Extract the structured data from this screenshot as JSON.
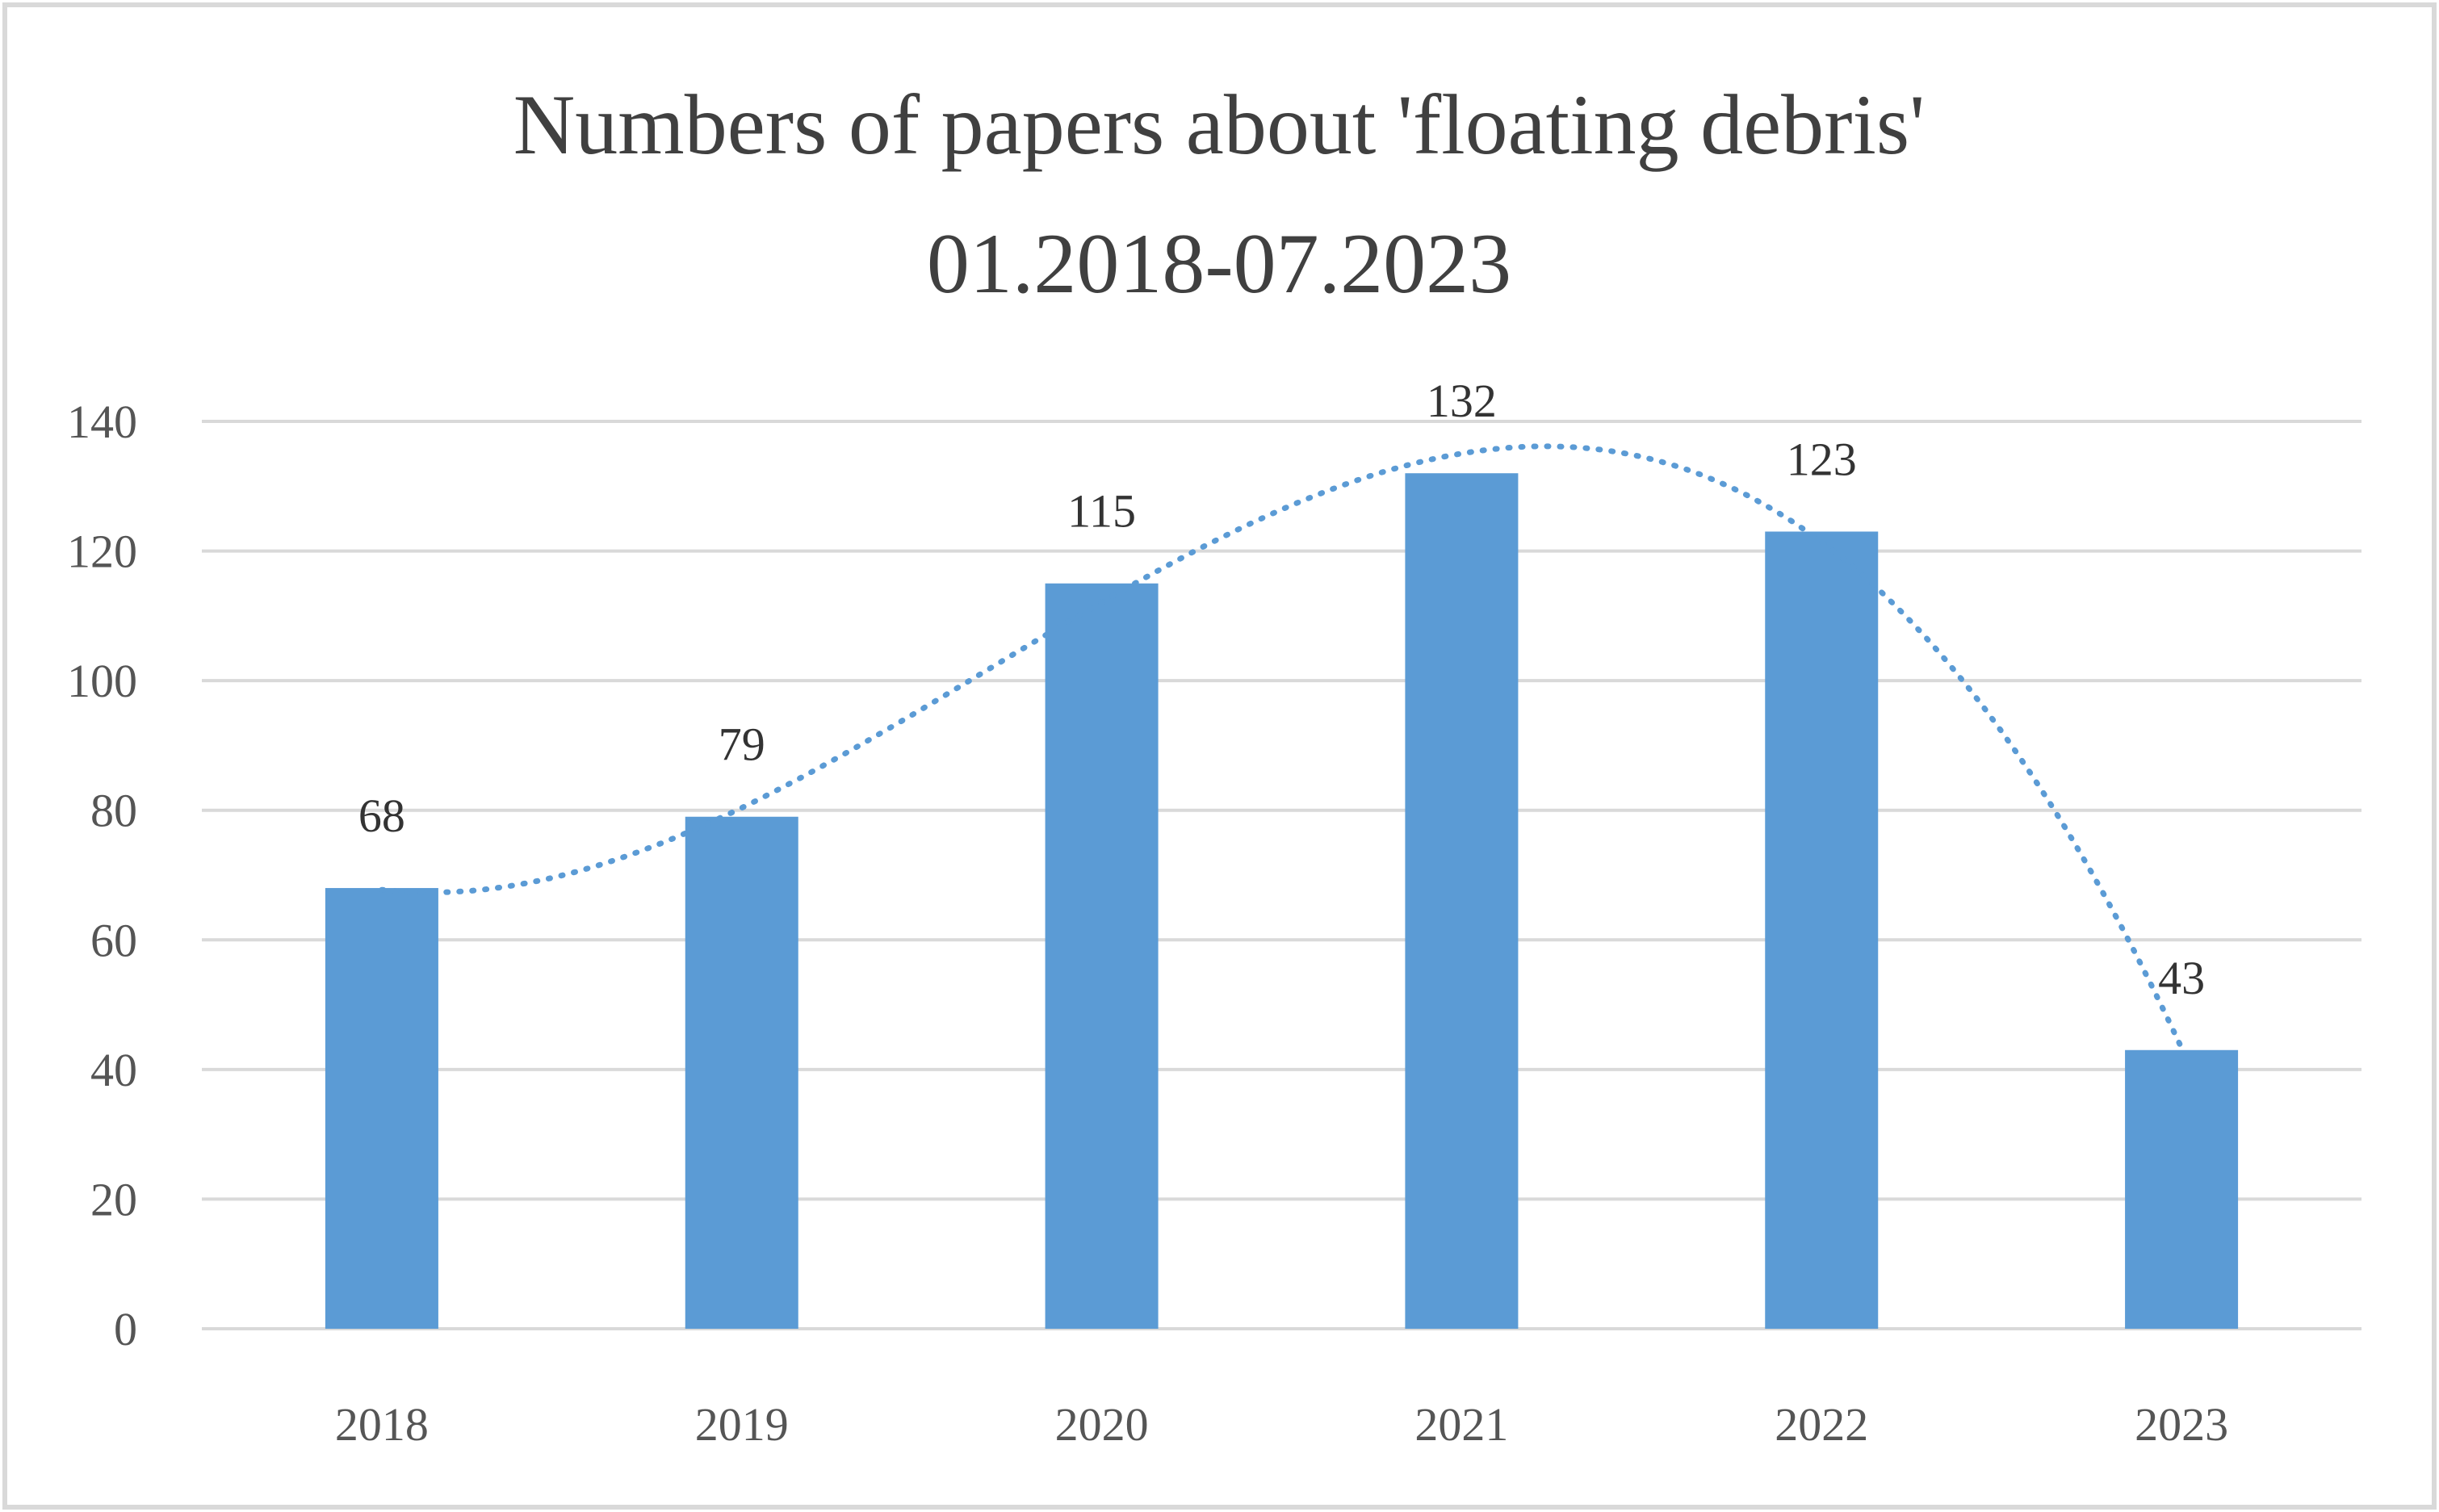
{
  "chart_data": {
    "type": "bar",
    "title": "Numbers of papers about 'floating debris'",
    "subtitle": "01.2018-07.2023",
    "categories": [
      "2018",
      "2019",
      "2020",
      "2021",
      "2022",
      "2023"
    ],
    "values": [
      68,
      79,
      115,
      132,
      123,
      43
    ],
    "data_labels": [
      "68",
      "79",
      "115",
      "132",
      "123",
      "43"
    ],
    "y_ticks": [
      0,
      20,
      40,
      60,
      80,
      100,
      120,
      140
    ],
    "ylim": [
      0,
      140
    ],
    "xlabel": "",
    "ylabel": "",
    "grid": true,
    "legend": "none",
    "trendline": {
      "type": "polynomial",
      "style": "dotted"
    },
    "colors": {
      "bar": "#5B9BD5",
      "trendline": "#5B9BD5",
      "grid": "#D9D9D9",
      "frame": "#D9D9D9"
    }
  }
}
